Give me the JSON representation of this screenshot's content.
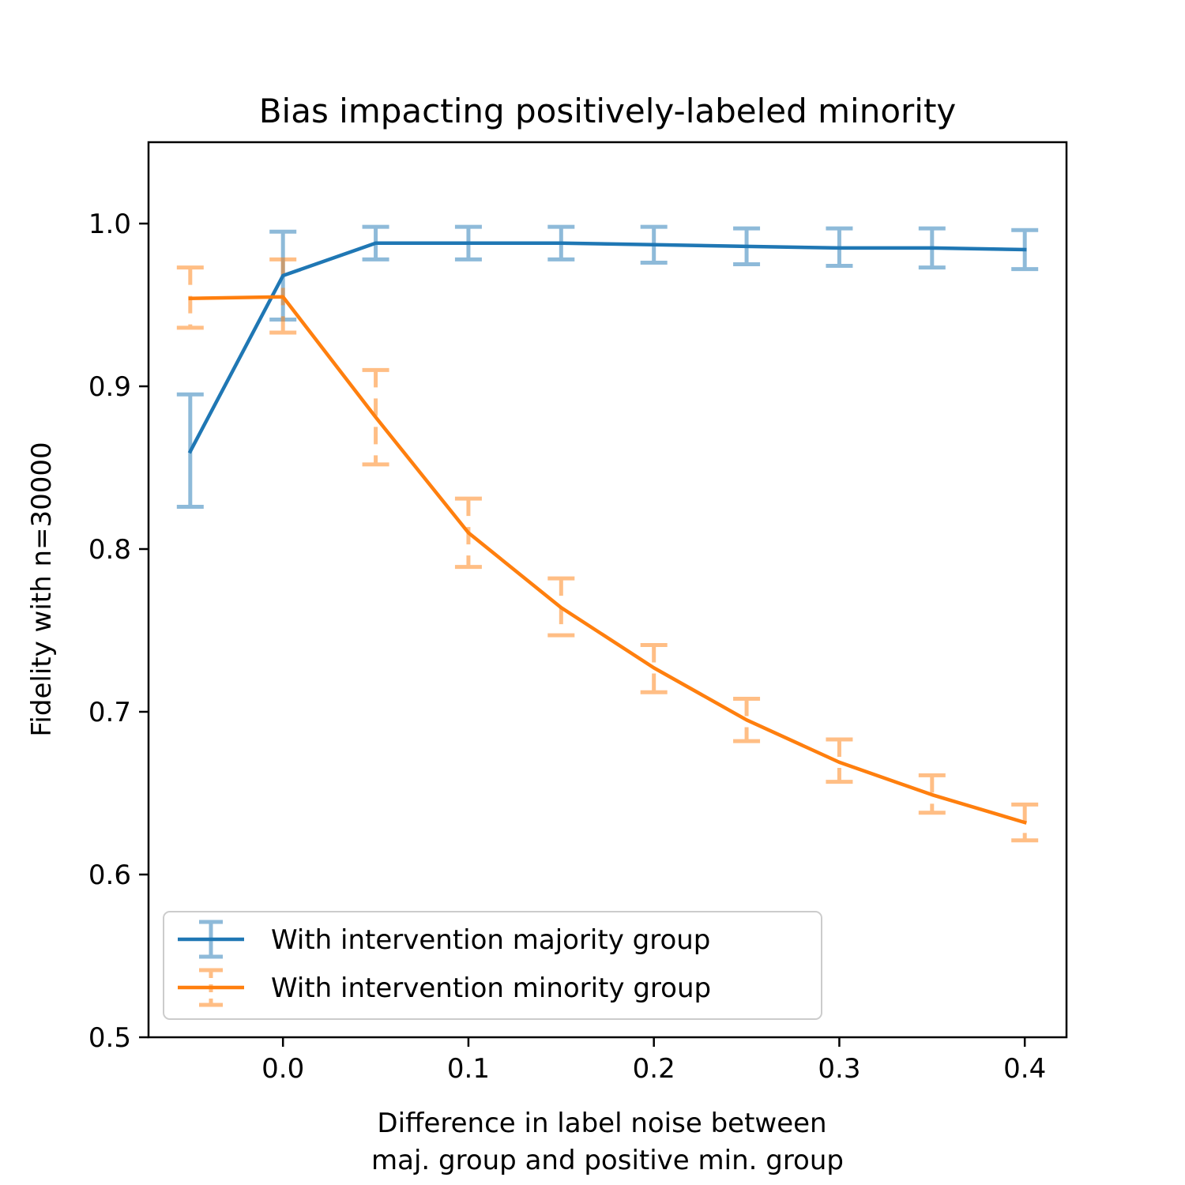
{
  "chart_data": {
    "type": "line",
    "title": "Bias impacting positively-labeled minority",
    "xlabel": [
      "Difference in label noise between",
      "maj. group and positive min. group"
    ],
    "ylabel": "Fidelity with n=30000",
    "xlim": [
      -0.0725,
      0.4225
    ],
    "ylim": [
      0.5,
      1.05
    ],
    "xticks": [
      0.0,
      0.1,
      0.2,
      0.3,
      0.4
    ],
    "xtick_labels": [
      "0.0",
      "0.1",
      "0.2",
      "0.3",
      "0.4"
    ],
    "yticks": [
      0.5,
      0.6,
      0.7,
      0.8,
      0.9,
      1.0
    ],
    "ytick_labels": [
      "0.5",
      "0.6",
      "0.7",
      "0.8",
      "0.9",
      "1.0"
    ],
    "grid": false,
    "legend_position": "lower-left",
    "x": [
      -0.05,
      0.0,
      0.05,
      0.1,
      0.15,
      0.2,
      0.25,
      0.3,
      0.35,
      0.4
    ],
    "series": [
      {
        "name": "With intervention majority group",
        "color": "#1f77b4",
        "errorbar_style": "solid",
        "values": [
          0.86,
          0.968,
          0.988,
          0.988,
          0.988,
          0.987,
          0.986,
          0.985,
          0.985,
          0.984
        ],
        "err_low": [
          0.826,
          0.941,
          0.978,
          0.978,
          0.978,
          0.976,
          0.975,
          0.974,
          0.973,
          0.972
        ],
        "err_high": [
          0.895,
          0.995,
          0.998,
          0.998,
          0.998,
          0.998,
          0.997,
          0.997,
          0.997,
          0.996
        ]
      },
      {
        "name": "With intervention minority group",
        "color": "#ff7f0e",
        "errorbar_style": "dashed",
        "values": [
          0.954,
          0.955,
          0.881,
          0.81,
          0.764,
          0.727,
          0.695,
          0.669,
          0.649,
          0.632
        ],
        "err_low": [
          0.936,
          0.933,
          0.852,
          0.789,
          0.747,
          0.712,
          0.682,
          0.657,
          0.638,
          0.621
        ],
        "err_high": [
          0.973,
          0.978,
          0.91,
          0.831,
          0.782,
          0.741,
          0.708,
          0.683,
          0.661,
          0.643
        ]
      }
    ]
  }
}
